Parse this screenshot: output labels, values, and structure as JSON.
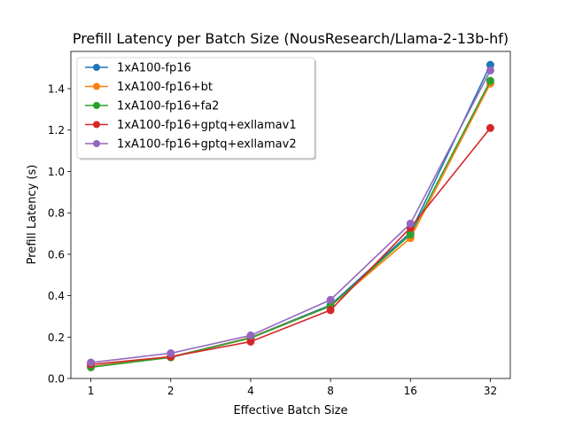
{
  "chart_data": {
    "type": "line",
    "title": "Prefill Latency per Batch Size (NousResearch/Llama-2-13b-hf)",
    "xlabel": "Effective Batch Size",
    "ylabel": "Prefill Latency (s)",
    "x_scale": "log2",
    "x": [
      1,
      2,
      4,
      8,
      16,
      32
    ],
    "x_tick_labels": [
      "1",
      "2",
      "4",
      "8",
      "16",
      "32"
    ],
    "ylim": [
      0,
      1.58
    ],
    "y_ticks": [
      0.0,
      0.2,
      0.4,
      0.6,
      0.8,
      1.0,
      1.2,
      1.4
    ],
    "y_tick_labels": [
      "0.0",
      "0.2",
      "0.4",
      "0.6",
      "0.8",
      "1.0",
      "1.2",
      "1.4"
    ],
    "grid": false,
    "legend_position": "top-left",
    "series": [
      {
        "name": "1xA100-fp16",
        "color": "#1f77b4",
        "values": [
          0.058,
          0.104,
          0.198,
          0.355,
          0.705,
          1.515
        ]
      },
      {
        "name": "1xA100-fp16+bt",
        "color": "#ff7f0e",
        "values": [
          0.057,
          0.103,
          0.197,
          0.35,
          0.678,
          1.425
        ]
      },
      {
        "name": "1xA100-fp16+fa2",
        "color": "#2ca02c",
        "values": [
          0.054,
          0.102,
          0.195,
          0.35,
          0.695,
          1.438
        ]
      },
      {
        "name": "1xA100-fp16+gptq+exllamav1",
        "color": "#d62728",
        "values": [
          0.068,
          0.105,
          0.178,
          0.33,
          0.728,
          1.21
        ]
      },
      {
        "name": "1xA100-fp16+gptq+exllamav2",
        "color": "#9467bd",
        "values": [
          0.077,
          0.122,
          0.208,
          0.38,
          0.748,
          1.488
        ]
      }
    ]
  }
}
